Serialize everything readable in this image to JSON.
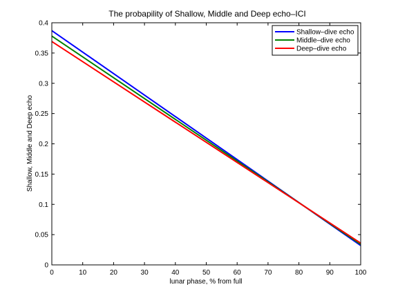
{
  "chart_data": {
    "type": "line",
    "title": "The probapility of Shallow, Middle and Deep echo–ICI",
    "xlabel": "lunar phase, % from full",
    "ylabel": "Shallow, Middle and Deep echo",
    "xlim": [
      0,
      100
    ],
    "ylim": [
      0,
      0.4
    ],
    "xticks": [
      0,
      10,
      20,
      30,
      40,
      50,
      60,
      70,
      80,
      90,
      100
    ],
    "yticks": [
      0,
      0.05,
      0.1,
      0.15,
      0.2,
      0.25,
      0.3,
      0.35,
      0.4
    ],
    "xtick_labels": [
      "0",
      "10",
      "20",
      "30",
      "40",
      "50",
      "60",
      "70",
      "80",
      "90",
      "100"
    ],
    "ytick_labels": [
      "0",
      "0.05",
      "0.1",
      "0.15",
      "0.2",
      "0.25",
      "0.3",
      "0.35",
      "0.4"
    ],
    "grid": false,
    "legend_position": "top-right",
    "series": [
      {
        "name": "Shallow–dive echo",
        "color": "#0000ff",
        "x": [
          0,
          100
        ],
        "y": [
          0.387,
          0.032
        ]
      },
      {
        "name": "Middle–dive echo",
        "color": "#008000",
        "x": [
          0,
          100
        ],
        "y": [
          0.378,
          0.034
        ]
      },
      {
        "name": "Deep–dive echo",
        "color": "#ff0000",
        "x": [
          0,
          100
        ],
        "y": [
          0.369,
          0.036
        ]
      }
    ]
  }
}
